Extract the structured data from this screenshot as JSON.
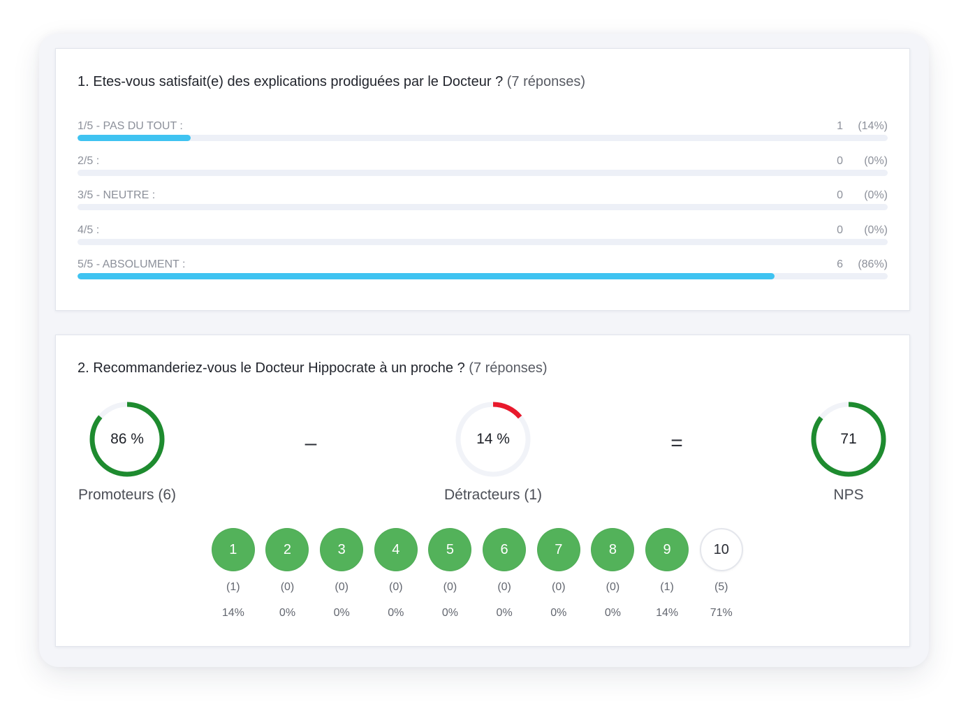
{
  "question1": {
    "title": "1. Etes-vous satisfait(e) des explications prodiguées par le Docteur ?",
    "responses": "(7 réponses)",
    "rows": [
      {
        "label": "1/5 - PAS DU TOUT :",
        "count": "1",
        "percent_label": "(14%)",
        "value": 14
      },
      {
        "label": "2/5 :",
        "count": "0",
        "percent_label": "(0%)",
        "value": 0
      },
      {
        "label": "3/5 - NEUTRE :",
        "count": "0",
        "percent_label": "(0%)",
        "value": 0
      },
      {
        "label": "4/5 :",
        "count": "0",
        "percent_label": "(0%)",
        "value": 0
      },
      {
        "label": "5/5 - ABSOLUMENT :",
        "count": "6",
        "percent_label": "(86%)",
        "value": 86
      }
    ]
  },
  "question2": {
    "title": "2. Recommanderiez-vous le Docteur Hippocrate à un proche ?",
    "responses": "(7 réponses)",
    "promoters": {
      "value_label": "86 %",
      "label": "Promoteurs (6)",
      "percent": 86
    },
    "minus_sign": "–",
    "detractors": {
      "value_label": "14 %",
      "label": "Détracteurs (1)",
      "percent": 14
    },
    "equals_sign": "=",
    "nps": {
      "value_label": "71",
      "label": "NPS",
      "score": 71,
      "range": [
        -100,
        100
      ]
    },
    "scores": [
      {
        "score": "1",
        "count": "(1)",
        "percent": "14%",
        "highlighted": true
      },
      {
        "score": "2",
        "count": "(0)",
        "percent": "0%",
        "highlighted": true
      },
      {
        "score": "3",
        "count": "(0)",
        "percent": "0%",
        "highlighted": true
      },
      {
        "score": "4",
        "count": "(0)",
        "percent": "0%",
        "highlighted": true
      },
      {
        "score": "5",
        "count": "(0)",
        "percent": "0%",
        "highlighted": true
      },
      {
        "score": "6",
        "count": "(0)",
        "percent": "0%",
        "highlighted": true
      },
      {
        "score": "7",
        "count": "(0)",
        "percent": "0%",
        "highlighted": true
      },
      {
        "score": "8",
        "count": "(0)",
        "percent": "0%",
        "highlighted": true
      },
      {
        "score": "9",
        "count": "(1)",
        "percent": "14%",
        "highlighted": true
      },
      {
        "score": "10",
        "count": "(5)",
        "percent": "71%",
        "highlighted": false
      }
    ]
  },
  "colors": {
    "bar_fill": "#3fc3f1",
    "bar_track": "#edf0f7",
    "promoter_green": "#1e8b2f",
    "detractor_red": "#e8192c",
    "ring_track": "#f1f3f8",
    "score_green": "#53b25a"
  }
}
